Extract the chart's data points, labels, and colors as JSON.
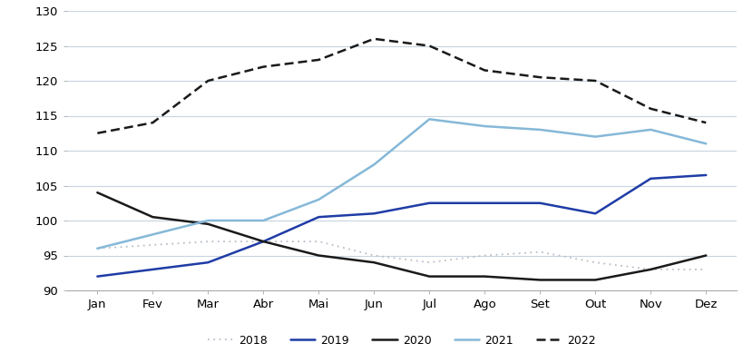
{
  "months": [
    "Jan",
    "Fev",
    "Mar",
    "Abr",
    "Mai",
    "Jun",
    "Jul",
    "Ago",
    "Set",
    "Out",
    "Nov",
    "Dez"
  ],
  "series": {
    "2018": [
      96,
      96.5,
      97,
      97,
      97,
      95,
      94,
      95,
      95.5,
      94,
      93,
      93
    ],
    "2019": [
      92,
      93,
      94,
      97,
      100.5,
      101,
      102.5,
      102.5,
      102.5,
      101,
      106,
      106.5
    ],
    "2020": [
      104,
      100.5,
      99.5,
      97,
      95,
      94,
      92,
      92,
      91.5,
      91.5,
      93,
      95
    ],
    "2021": [
      96,
      98,
      100,
      100,
      103,
      108,
      114.5,
      113.5,
      113,
      112,
      113,
      111
    ],
    "2022": [
      112.5,
      114,
      120,
      122,
      123,
      126,
      125,
      121.5,
      120.5,
      120,
      116,
      114
    ]
  },
  "colors": {
    "2018": "#b8bfc8",
    "2019": "#1f3ca6",
    "2020": "#1a1a1a",
    "2021": "#85b8d8",
    "2022": "#1a1a1a"
  },
  "linestyles": {
    "2018": "dotted",
    "2019": "solid",
    "2020": "solid",
    "2021": "solid",
    "2022": "dashed"
  },
  "linewidths": {
    "2018": 1.3,
    "2019": 1.8,
    "2020": 1.8,
    "2021": 1.8,
    "2022": 1.8
  },
  "ylim": [
    90,
    130
  ],
  "yticks": [
    90,
    95,
    100,
    105,
    110,
    115,
    120,
    125,
    130
  ],
  "background_color": "#ffffff",
  "grid_color": "#c8d4e0",
  "legend_order": [
    "2018",
    "2019",
    "2020",
    "2021",
    "2022"
  ]
}
